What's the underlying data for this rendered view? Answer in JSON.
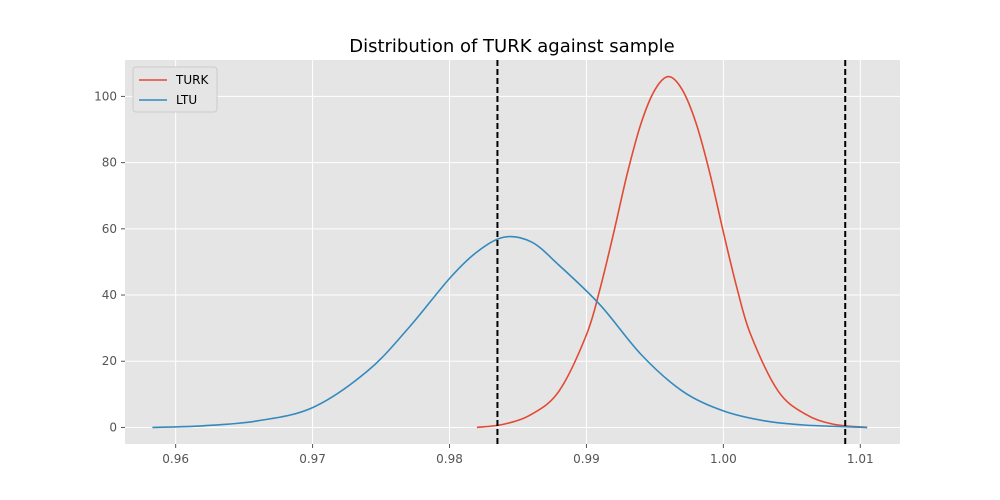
{
  "chart_data": {
    "type": "line",
    "title": "Distribution of TURK against sample",
    "xlabel": "",
    "ylabel": "",
    "xlim": [
      0.9563,
      1.0129
    ],
    "ylim": [
      -5,
      111
    ],
    "grid": true,
    "legend_position": "top-left",
    "x_ticks": [
      {
        "value": 0.96,
        "label": "0.96"
      },
      {
        "value": 0.97,
        "label": "0.97"
      },
      {
        "value": 0.98,
        "label": "0.98"
      },
      {
        "value": 0.99,
        "label": "0.99"
      },
      {
        "value": 1.0,
        "label": "1.00"
      },
      {
        "value": 1.01,
        "label": "1.01"
      }
    ],
    "y_ticks": [
      {
        "value": 0,
        "label": "0"
      },
      {
        "value": 20,
        "label": "20"
      },
      {
        "value": 40,
        "label": "40"
      },
      {
        "value": 60,
        "label": "60"
      },
      {
        "value": 80,
        "label": "80"
      },
      {
        "value": 100,
        "label": "100"
      }
    ],
    "series": [
      {
        "name": "TURK",
        "color": "#E24A33",
        "x": [
          0.982,
          0.984,
          0.986,
          0.988,
          0.99,
          0.991,
          0.992,
          0.993,
          0.994,
          0.995,
          0.996,
          0.997,
          0.998,
          0.999,
          1.0,
          1.001,
          1.002,
          1.004,
          1.006,
          1.008,
          1.0105
        ],
        "y": [
          0.0,
          1.0,
          4.0,
          11.0,
          28.0,
          42.0,
          59.0,
          77.0,
          92.0,
          102.0,
          106.0,
          102.0,
          92.0,
          77.0,
          59.0,
          42.0,
          28.0,
          11.0,
          4.0,
          1.0,
          0.0
        ]
      },
      {
        "name": "LTU",
        "color": "#348ABD",
        "x": [
          0.9583,
          0.962,
          0.966,
          0.97,
          0.974,
          0.977,
          0.98,
          0.982,
          0.984,
          0.986,
          0.988,
          0.991,
          0.994,
          0.997,
          1.0,
          1.003,
          1.006,
          1.0105
        ],
        "y": [
          0.0,
          0.5,
          2.0,
          6.0,
          17.0,
          30.0,
          45.0,
          53.0,
          57.5,
          56.0,
          49.0,
          37.0,
          22.0,
          11.0,
          5.0,
          2.0,
          0.7,
          0.0
        ]
      }
    ],
    "vlines": [
      {
        "x": 0.9835,
        "color": "#000000",
        "style": "dashed"
      },
      {
        "x": 1.0089,
        "color": "#000000",
        "style": "dashed"
      }
    ],
    "colors": {
      "plot_background": "#E5E5E5",
      "grid": "#FFFFFF"
    }
  }
}
